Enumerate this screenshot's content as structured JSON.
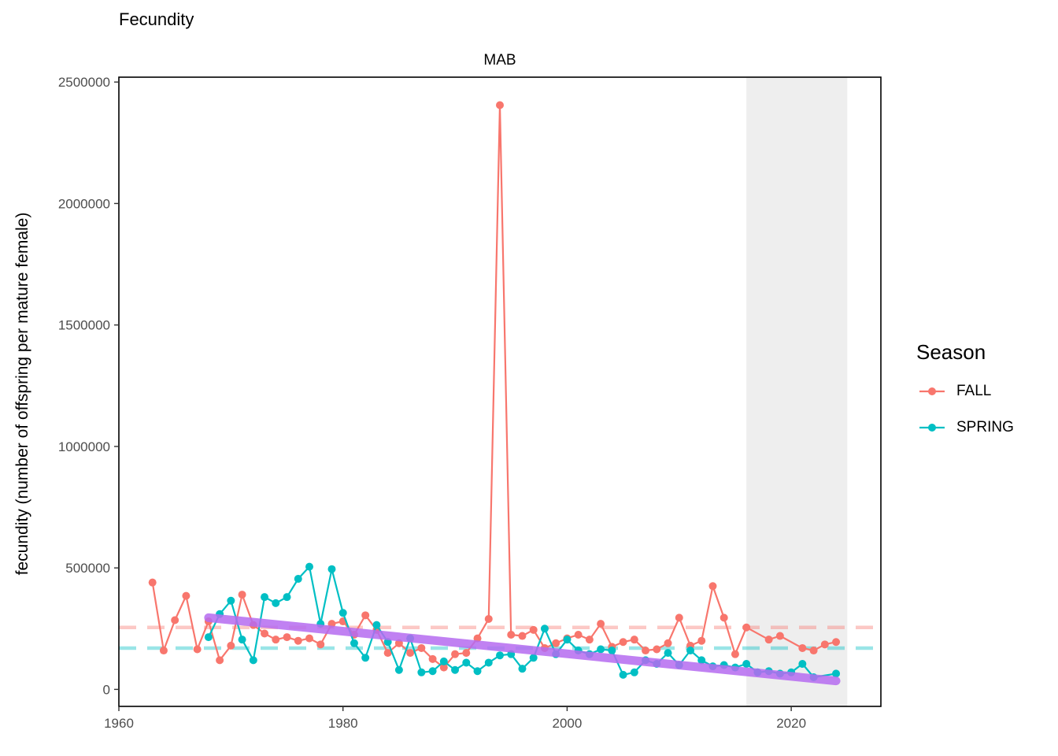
{
  "title": "Fecundity",
  "chart_data": {
    "type": "line",
    "facet": "MAB",
    "ylabel": "fecundity (number of offspring per mature female)",
    "xlabel": "",
    "xlim": [
      1960,
      2028
    ],
    "ylim": [
      -70000,
      2520000
    ],
    "x_ticks": [
      1960,
      1980,
      2000,
      2020
    ],
    "y_ticks": [
      0,
      500000,
      1000000,
      1500000,
      2000000,
      2500000
    ],
    "x_tick_labels": [
      "1960",
      "1980",
      "2000",
      "2020"
    ],
    "y_tick_labels": [
      "0",
      "500000",
      "1000000",
      "1500000",
      "2000000",
      "2500000"
    ],
    "shaded_region": [
      2016,
      2025
    ],
    "legend": {
      "title": "Season",
      "position": "right"
    },
    "series": [
      {
        "name": "FALL",
        "color": "#F8766D",
        "mean": 255000,
        "points": [
          [
            1963,
            440000
          ],
          [
            1964,
            160000
          ],
          [
            1965,
            285000
          ],
          [
            1966,
            385000
          ],
          [
            1967,
            165000
          ],
          [
            1968,
            280000
          ],
          [
            1969,
            120000
          ],
          [
            1970,
            180000
          ],
          [
            1971,
            390000
          ],
          [
            1972,
            265000
          ],
          [
            1973,
            230000
          ],
          [
            1974,
            205000
          ],
          [
            1975,
            215000
          ],
          [
            1976,
            200000
          ],
          [
            1977,
            210000
          ],
          [
            1978,
            185000
          ],
          [
            1979,
            270000
          ],
          [
            1980,
            280000
          ],
          [
            1981,
            225000
          ],
          [
            1982,
            305000
          ],
          [
            1983,
            245000
          ],
          [
            1984,
            150000
          ],
          [
            1985,
            190000
          ],
          [
            1986,
            150000
          ],
          [
            1987,
            170000
          ],
          [
            1988,
            125000
          ],
          [
            1989,
            90000
          ],
          [
            1990,
            145000
          ],
          [
            1991,
            150000
          ],
          [
            1992,
            210000
          ],
          [
            1993,
            290000
          ],
          [
            1994,
            2405000
          ],
          [
            1995,
            225000
          ],
          [
            1996,
            220000
          ],
          [
            1997,
            245000
          ],
          [
            1998,
            170000
          ],
          [
            1999,
            190000
          ],
          [
            2000,
            210000
          ],
          [
            2001,
            225000
          ],
          [
            2002,
            205000
          ],
          [
            2003,
            270000
          ],
          [
            2004,
            175000
          ],
          [
            2005,
            195000
          ],
          [
            2006,
            205000
          ],
          [
            2007,
            160000
          ],
          [
            2008,
            165000
          ],
          [
            2009,
            190000
          ],
          [
            2010,
            295000
          ],
          [
            2011,
            180000
          ],
          [
            2012,
            200000
          ],
          [
            2013,
            425000
          ],
          [
            2014,
            295000
          ],
          [
            2015,
            145000
          ],
          [
            2016,
            255000
          ],
          [
            2018,
            205000
          ],
          [
            2019,
            220000
          ],
          [
            2021,
            170000
          ],
          [
            2022,
            160000
          ],
          [
            2023,
            185000
          ],
          [
            2024,
            195000
          ]
        ]
      },
      {
        "name": "SPRING",
        "color": "#00BFC4",
        "mean": 170000,
        "points": [
          [
            1968,
            215000
          ],
          [
            1969,
            310000
          ],
          [
            1970,
            365000
          ],
          [
            1971,
            205000
          ],
          [
            1972,
            120000
          ],
          [
            1973,
            380000
          ],
          [
            1974,
            355000
          ],
          [
            1975,
            380000
          ],
          [
            1976,
            455000
          ],
          [
            1977,
            505000
          ],
          [
            1978,
            270000
          ],
          [
            1979,
            495000
          ],
          [
            1980,
            315000
          ],
          [
            1981,
            190000
          ],
          [
            1982,
            130000
          ],
          [
            1983,
            265000
          ],
          [
            1984,
            195000
          ],
          [
            1985,
            80000
          ],
          [
            1986,
            210000
          ],
          [
            1987,
            70000
          ],
          [
            1988,
            75000
          ],
          [
            1989,
            115000
          ],
          [
            1990,
            80000
          ],
          [
            1991,
            110000
          ],
          [
            1992,
            75000
          ],
          [
            1993,
            110000
          ],
          [
            1994,
            140000
          ],
          [
            1995,
            145000
          ],
          [
            1996,
            85000
          ],
          [
            1997,
            130000
          ],
          [
            1998,
            250000
          ],
          [
            1999,
            145000
          ],
          [
            2000,
            205000
          ],
          [
            2001,
            160000
          ],
          [
            2002,
            145000
          ],
          [
            2003,
            165000
          ],
          [
            2004,
            160000
          ],
          [
            2005,
            60000
          ],
          [
            2006,
            70000
          ],
          [
            2007,
            120000
          ],
          [
            2008,
            105000
          ],
          [
            2009,
            150000
          ],
          [
            2010,
            100000
          ],
          [
            2011,
            160000
          ],
          [
            2012,
            120000
          ],
          [
            2013,
            95000
          ],
          [
            2014,
            100000
          ],
          [
            2015,
            90000
          ],
          [
            2016,
            105000
          ],
          [
            2017,
            70000
          ],
          [
            2018,
            75000
          ],
          [
            2019,
            65000
          ],
          [
            2020,
            70000
          ],
          [
            2021,
            105000
          ],
          [
            2022,
            50000
          ],
          [
            2024,
            65000
          ]
        ]
      }
    ],
    "trend": {
      "color": "#B56BF0",
      "x": [
        1968,
        2024
      ],
      "y": [
        295000,
        35000
      ]
    }
  }
}
